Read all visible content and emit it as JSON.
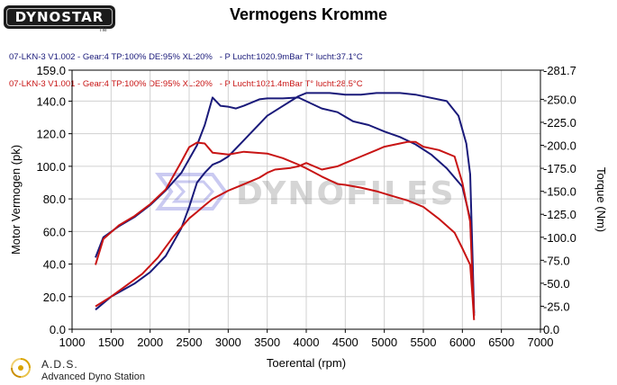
{
  "brand": {
    "logo_text": "DYNOSTAR",
    "logo_sub": "TM"
  },
  "footer": {
    "title": "A.D.S.",
    "subtitle": "Advanced Dyno Station"
  },
  "watermark": {
    "text": "DYNOFILES"
  },
  "runs": [
    {
      "label": "07-LKN-3 V1.002 - Gear:4 TP:100% DE:95% XL:20%   - P Lucht:1020.9mBar T° lucht:37.1°C",
      "color": "#1a1a7a"
    },
    {
      "label": "07-LKN-3 V1.001 - Gear:4 TP:100% DE:95% XL:20%   - P Lucht:1021.4mBar T° lucht:28.5°C",
      "color": "#c81414"
    }
  ],
  "chart_data": {
    "type": "line",
    "title": "Vermogens Kromme",
    "xlabel": "Toerental (rpm)",
    "ylabel": "Motor Vermogen (pk)",
    "y2label": "Torque (Nm)",
    "xlim": [
      1000,
      7000
    ],
    "ylim": [
      0,
      159
    ],
    "y2lim": [
      0,
      281.7
    ],
    "xticks": [
      "1000",
      "1500",
      "2000",
      "2500",
      "3000",
      "3500",
      "4000",
      "4500",
      "5000",
      "5500",
      "6000",
      "6500",
      "7000"
    ],
    "yticks": [
      "0.0",
      "20.0",
      "40.0",
      "60.0",
      "80.0",
      "100.0",
      "120.0",
      "140.0",
      "159.0"
    ],
    "y2ticks": [
      "0.0",
      "-25.0",
      "-50.0",
      "-75.0",
      "-100.0",
      "-125.0",
      "-150.0",
      "-175.0",
      "-200.0",
      "-225.0",
      "-250.0",
      "-281.7"
    ],
    "grid": true,
    "series": [
      {
        "name": "07-LKN-3 V1.002 power",
        "axis": "left",
        "color": "#1a1a7a",
        "x": [
          1300,
          1500,
          1800,
          2000,
          2200,
          2400,
          2500,
          2600,
          2700,
          2800,
          2900,
          3000,
          3200,
          3400,
          3500,
          3700,
          3800,
          3900,
          4000,
          4100,
          4300,
          4500,
          4700,
          4900,
          5000,
          5200,
          5400,
          5600,
          5800,
          5950,
          6050,
          6100,
          6130,
          6150
        ],
        "y": [
          12,
          20,
          28,
          35,
          45,
          62,
          75,
          90,
          96,
          101,
          103,
          106,
          116,
          126,
          131,
          137,
          140,
          143,
          145,
          145,
          145,
          144,
          144,
          145,
          145,
          145,
          144,
          142,
          140,
          131,
          114,
          95,
          45,
          10
        ]
      },
      {
        "name": "07-LKN-3 V1.002 torque",
        "axis": "right",
        "color": "#1a1a7a",
        "x": [
          1300,
          1400,
          1600,
          1800,
          2000,
          2200,
          2400,
          2600,
          2700,
          2800,
          2900,
          3000,
          3100,
          3200,
          3400,
          3500,
          3700,
          3900,
          4000,
          4200,
          4400,
          4600,
          4800,
          5000,
          5200,
          5400,
          5600,
          5800,
          6000,
          6100,
          6130,
          6150
        ],
        "y": [
          78,
          100,
          112,
          122,
          135,
          151,
          170,
          200,
          222,
          252,
          243,
          242,
          240,
          243,
          250,
          251,
          251,
          252,
          248,
          240,
          236,
          226,
          222,
          215,
          209,
          201,
          190,
          175,
          155,
          120,
          60,
          15
        ]
      },
      {
        "name": "07-LKN-3 V1.001 power",
        "axis": "left",
        "color": "#c81414",
        "x": [
          1300,
          1500,
          1700,
          1900,
          2100,
          2300,
          2500,
          2600,
          2700,
          2800,
          3000,
          3200,
          3400,
          3500,
          3600,
          3800,
          3900,
          4000,
          4200,
          4400,
          4500,
          4700,
          4900,
          5000,
          5200,
          5300,
          5400,
          5500,
          5700,
          5900,
          6000,
          6100,
          6130,
          6150
        ],
        "y": [
          14,
          20,
          27,
          34,
          44,
          57,
          68,
          72,
          76,
          80,
          85,
          89,
          93,
          96,
          98,
          99,
          100,
          102,
          98,
          100,
          102,
          106,
          110,
          112,
          114,
          115,
          115,
          112,
          110,
          106,
          90,
          66,
          30,
          8
        ]
      },
      {
        "name": "07-LKN-3 V1.001 torque",
        "axis": "right",
        "color": "#c81414",
        "x": [
          1300,
          1400,
          1600,
          1800,
          2000,
          2200,
          2400,
          2500,
          2600,
          2700,
          2800,
          3000,
          3200,
          3500,
          3700,
          3900,
          4000,
          4200,
          4400,
          4500,
          4700,
          4900,
          5100,
          5300,
          5500,
          5700,
          5900,
          6000,
          6100,
          6130,
          6150
        ],
        "y": [
          70,
          98,
          113,
          123,
          136,
          152,
          182,
          198,
          203,
          202,
          192,
          190,
          193,
          191,
          186,
          179,
          175,
          166,
          158,
          157,
          154,
          150,
          145,
          140,
          133,
          120,
          105,
          88,
          70,
          35,
          10
        ]
      }
    ]
  }
}
